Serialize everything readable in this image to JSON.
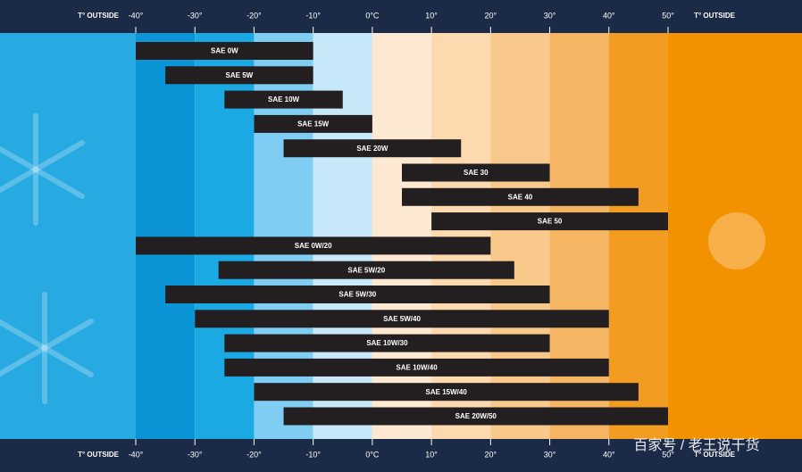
{
  "chart_data": {
    "type": "range",
    "axis_label": "T° OUTSIDE",
    "xlim": [
      -40,
      50
    ],
    "xticks": [
      {
        "value": -40,
        "label": "-40°"
      },
      {
        "value": -30,
        "label": "-30°"
      },
      {
        "value": -20,
        "label": "-20°"
      },
      {
        "value": -10,
        "label": "-10°"
      },
      {
        "value": 0,
        "label": "0°C"
      },
      {
        "value": 10,
        "label": "10°"
      },
      {
        "value": 20,
        "label": "20°"
      },
      {
        "value": 30,
        "label": "30°"
      },
      {
        "value": 40,
        "label": "40°"
      },
      {
        "value": 50,
        "label": "50°"
      }
    ],
    "categories": [
      "SAE 0W",
      "SAE 5W",
      "SAE 10W",
      "SAE 15W",
      "SAE 20W",
      "SAE 30",
      "SAE 40",
      "SAE 50",
      "SAE 0W/20",
      "SAE 5W/20",
      "SAE 5W/30",
      "SAE 5W/40",
      "SAE 10W/30",
      "SAE 10W/40",
      "SAE 15W/40",
      "SAE 20W/50"
    ],
    "ranges": [
      [
        -40,
        -10
      ],
      [
        -35,
        -10
      ],
      [
        -25,
        -5
      ],
      [
        -20,
        0
      ],
      [
        -15,
        15
      ],
      [
        5,
        30
      ],
      [
        5,
        45
      ],
      [
        10,
        50
      ],
      [
        -40,
        20
      ],
      [
        -26,
        24
      ],
      [
        -35,
        30
      ],
      [
        -30,
        40
      ],
      [
        -25,
        30
      ],
      [
        -25,
        40
      ],
      [
        -20,
        45
      ],
      [
        -15,
        50
      ]
    ],
    "color": "#231f20"
  },
  "watermark": "百家号 / 老王说干货"
}
